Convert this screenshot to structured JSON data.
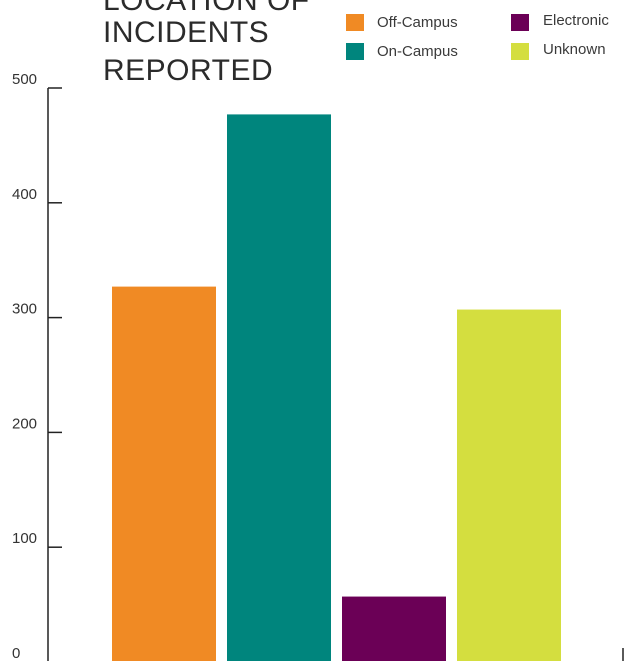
{
  "chart_data": {
    "type": "bar",
    "title_lines": [
      "LOCATION OF",
      "INCIDENTS",
      "REPORTED"
    ],
    "categories": [
      "Off-Campus",
      "On-Campus",
      "Electronic",
      "Unknown"
    ],
    "values": [
      327,
      477,
      57,
      307
    ],
    "colors": [
      "#F08A24",
      "#00857D",
      "#6B0056",
      "#D4DE3F"
    ],
    "ylim": [
      0,
      500
    ],
    "yticks": [
      0,
      100,
      200,
      300,
      400,
      500
    ],
    "legend": {
      "position": "top-right",
      "entries": [
        {
          "label": "Off-Campus",
          "color": "#F08A24"
        },
        {
          "label": "On-Campus",
          "color": "#00857D"
        },
        {
          "label": "Electronic",
          "color": "#6B0056"
        },
        {
          "label": "Unknown",
          "color": "#D4DE3F"
        }
      ]
    },
    "grid": false
  }
}
